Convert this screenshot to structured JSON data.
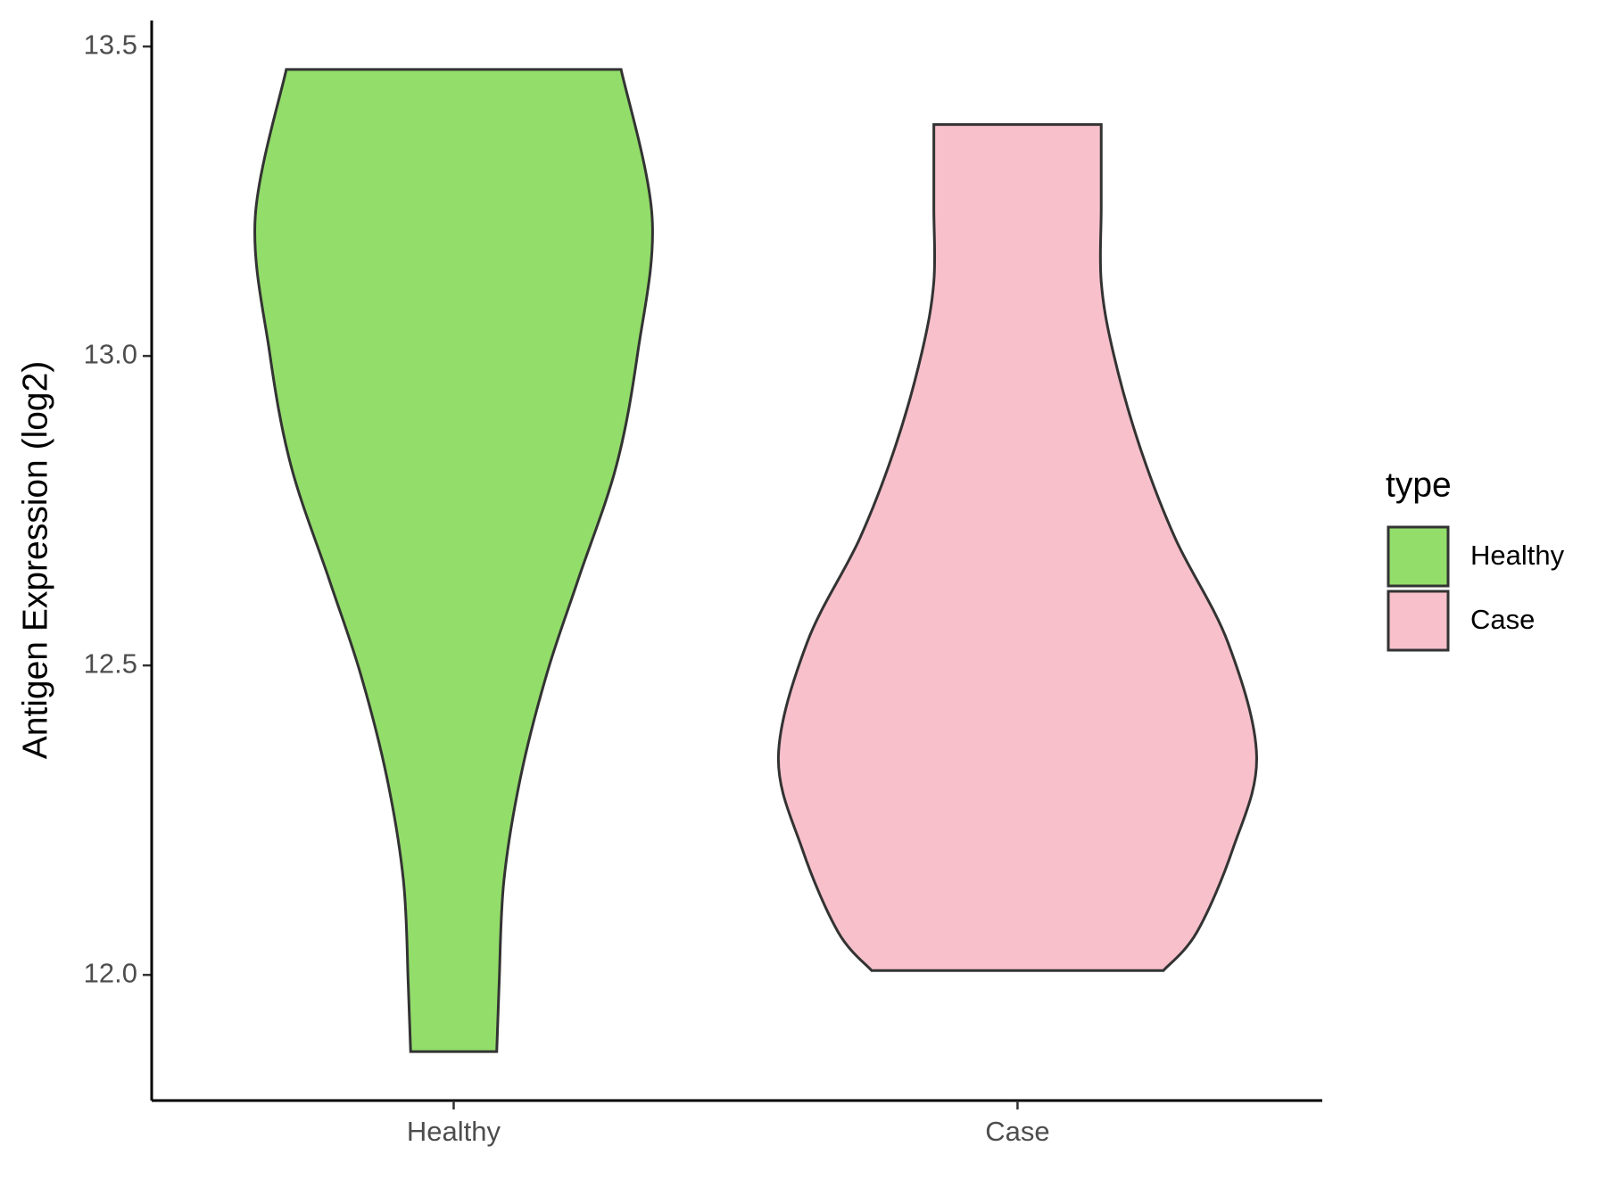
{
  "chart_data": {
    "type": "violin",
    "y_label": "Antigen Expression (log2)",
    "legend_title": "type",
    "categories": [
      "Healthy",
      "Case"
    ],
    "ylim": [
      11.797,
      13.542
    ],
    "yticks": [
      {
        "value": 12,
        "label": "12.0"
      },
      12.5,
      {
        "value": 13,
        "label": "13.0"
      },
      13.5
    ],
    "series": [
      {
        "name": "Healthy",
        "color": "#93dd6b",
        "y": [
          13.463,
          13.224,
          13.006,
          12.822,
          12.638,
          12.487,
          12.32,
          12.152,
          11.985,
          11.876
        ],
        "width": [
          0.7,
          0.83,
          0.77,
          0.68,
          0.52,
          0.39,
          0.28,
          0.21,
          0.19,
          0.18
        ]
      },
      {
        "name": "Case",
        "color": "#f7c0cb",
        "y": [
          13.374,
          13.24,
          13.12,
          13.006,
          12.855,
          12.705,
          12.537,
          12.353,
          12.203,
          12.069,
          12.007
        ],
        "width": [
          0.35,
          0.35,
          0.35,
          0.4,
          0.51,
          0.66,
          0.88,
          1.0,
          0.9,
          0.75,
          0.61
        ]
      }
    ]
  }
}
